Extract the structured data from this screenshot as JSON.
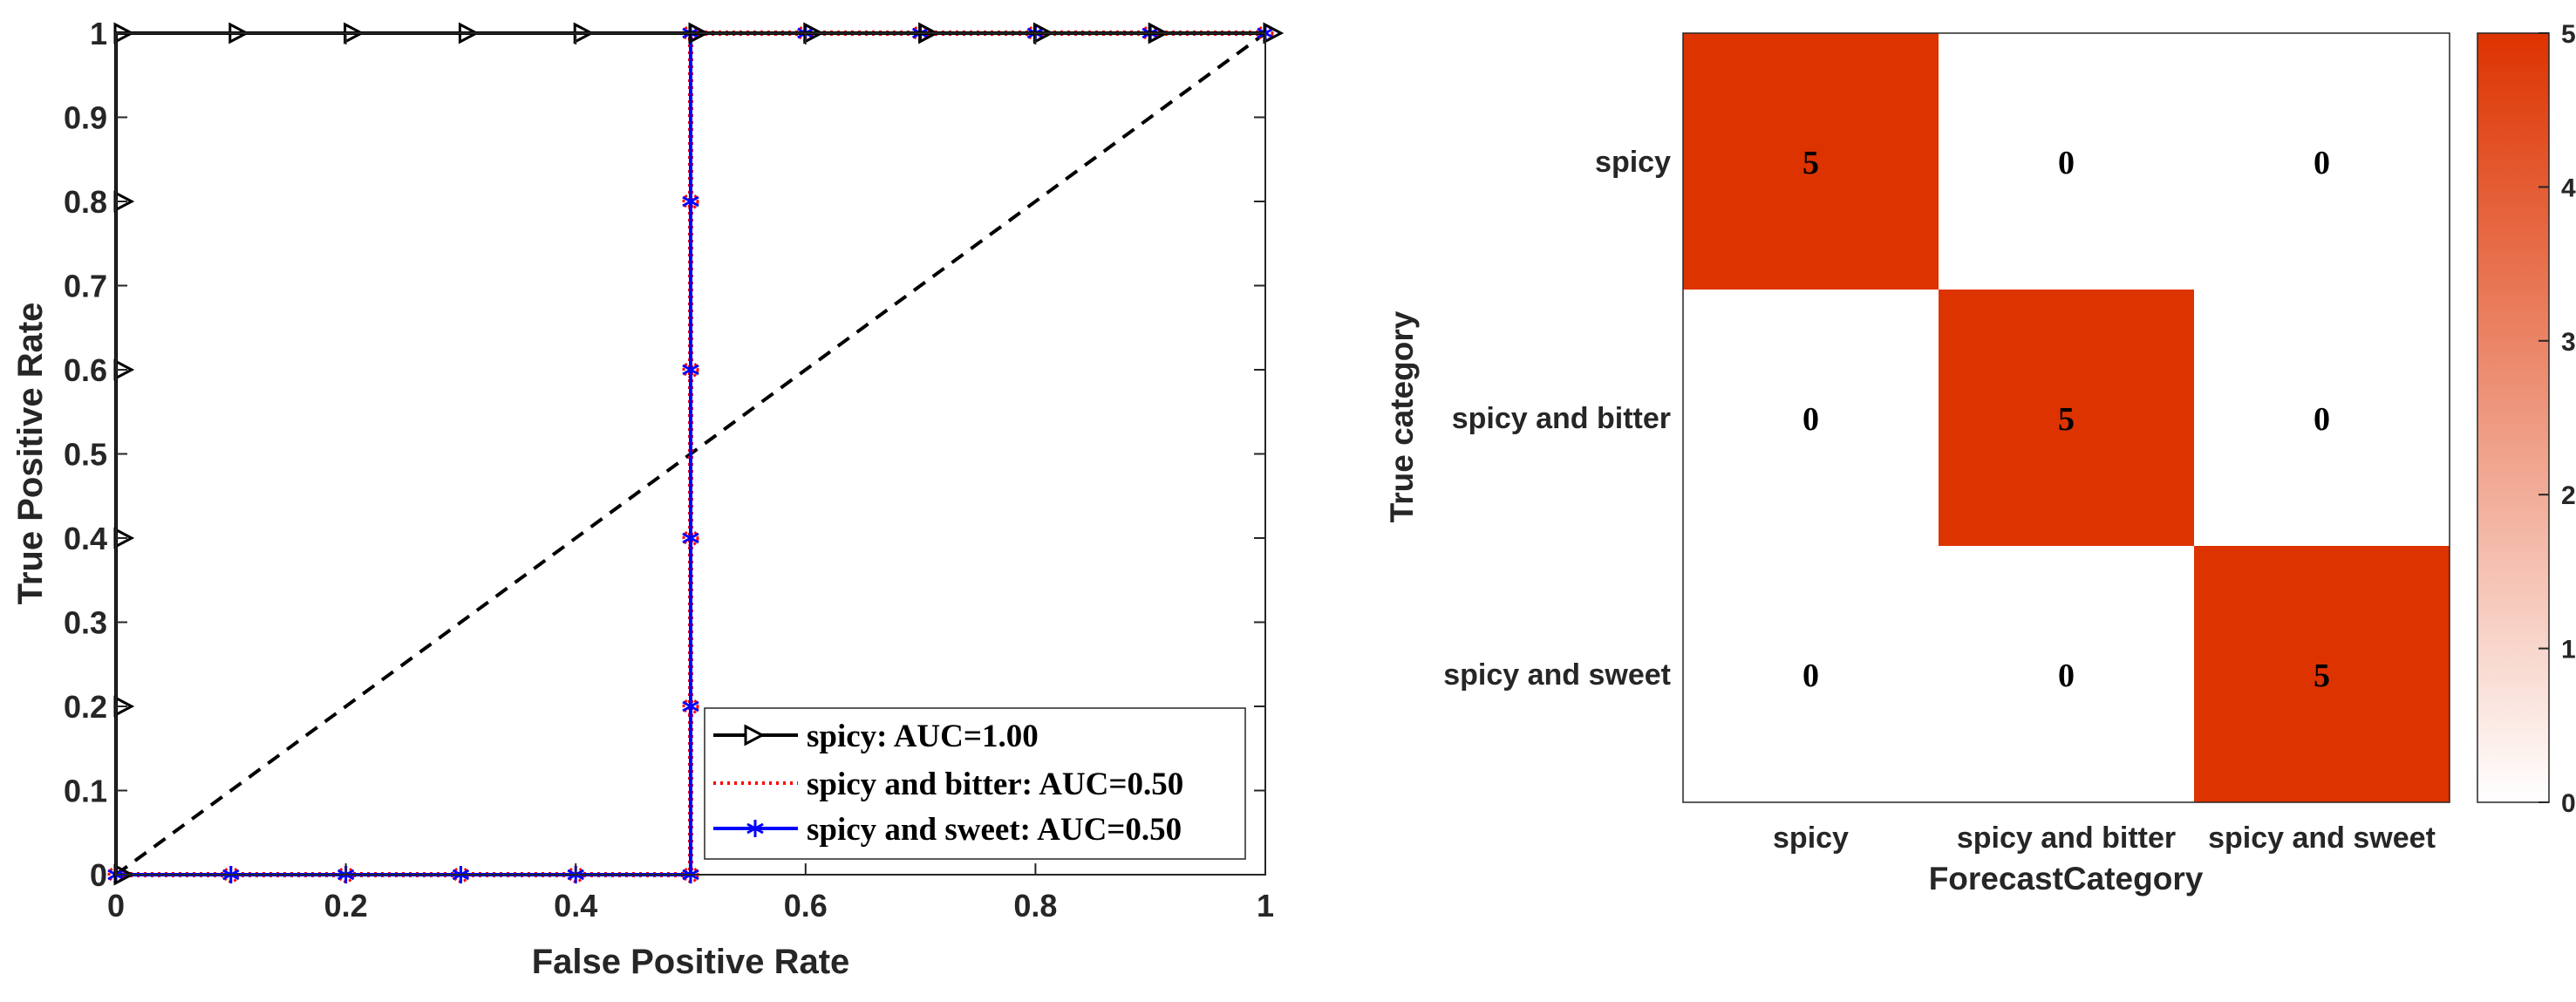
{
  "chart_data": [
    {
      "type": "line",
      "title": "",
      "xlabel": "False Positive Rate",
      "ylabel": "True Positive Rate",
      "xlim": [
        0,
        1
      ],
      "ylim": [
        0,
        1
      ],
      "xticks": [
        0,
        0.2,
        0.4,
        0.6,
        0.8,
        1
      ],
      "xtick_labels": [
        "0",
        "0.2",
        "0.4",
        "0.6",
        "0.8",
        "1"
      ],
      "yticks": [
        0,
        0.1,
        0.2,
        0.3,
        0.4,
        0.5,
        0.6,
        0.7,
        0.8,
        0.9,
        1
      ],
      "ytick_labels": [
        "0",
        "0.1",
        "0.2",
        "0.3",
        "0.4",
        "0.5",
        "0.6",
        "0.7",
        "0.8",
        "0.9",
        "1"
      ],
      "grid": false,
      "legend_position": "bottom-right",
      "series": [
        {
          "name": "spicy: AUC=1.00",
          "color": "#000000",
          "line_style": "solid",
          "marker": "triangle-right",
          "x": [
            0,
            0,
            0,
            0,
            0,
            0,
            0.1,
            0.2,
            0.3,
            0.4,
            0.5,
            0.6,
            0.7,
            0.8,
            0.9,
            1
          ],
          "y": [
            0,
            0.2,
            0.4,
            0.6,
            0.8,
            1,
            1,
            1,
            1,
            1,
            1,
            1,
            1,
            1,
            1,
            1
          ]
        },
        {
          "name": "spicy and bitter: AUC=0.50",
          "color": "#ff0000",
          "line_style": "dotted",
          "marker": "none",
          "x": [
            0,
            0.1,
            0.2,
            0.3,
            0.4,
            0.5,
            0.5,
            0.5,
            0.5,
            0.5,
            0.5,
            0.6,
            0.7,
            0.8,
            0.9,
            1
          ],
          "y": [
            0,
            0,
            0,
            0,
            0,
            0,
            0.2,
            0.4,
            0.6,
            0.8,
            1,
            1,
            1,
            1,
            1,
            1
          ]
        },
        {
          "name": "spicy and sweet: AUC=0.50",
          "color": "#0000ff",
          "line_style": "solid",
          "marker": "asterisk",
          "x": [
            0,
            0.1,
            0.2,
            0.3,
            0.4,
            0.5,
            0.5,
            0.5,
            0.5,
            0.5,
            0.5,
            0.6,
            0.7,
            0.8,
            0.9,
            1
          ],
          "y": [
            0,
            0,
            0,
            0,
            0,
            0,
            0.2,
            0.4,
            0.6,
            0.8,
            1,
            1,
            1,
            1,
            1,
            1
          ]
        }
      ],
      "reference_line": {
        "x": [
          0,
          1
        ],
        "y": [
          0,
          1
        ],
        "color": "#000000",
        "line_style": "dashed"
      }
    },
    {
      "type": "heatmap",
      "title": "",
      "xlabel": "ForecastCategory",
      "ylabel": "True category",
      "x_categories": [
        "spicy",
        "spicy and bitter",
        "spicy and sweet"
      ],
      "y_categories": [
        "spicy",
        "spicy and bitter",
        "spicy and sweet"
      ],
      "values": [
        [
          5,
          0,
          0
        ],
        [
          0,
          5,
          0
        ],
        [
          0,
          0,
          5
        ]
      ],
      "colorbar": {
        "min": 0,
        "max": 5,
        "ticks": [
          "0",
          "1",
          "2",
          "3",
          "4",
          "5"
        ],
        "color_low": "#ffffff",
        "color_high": "#dd3300"
      }
    }
  ]
}
